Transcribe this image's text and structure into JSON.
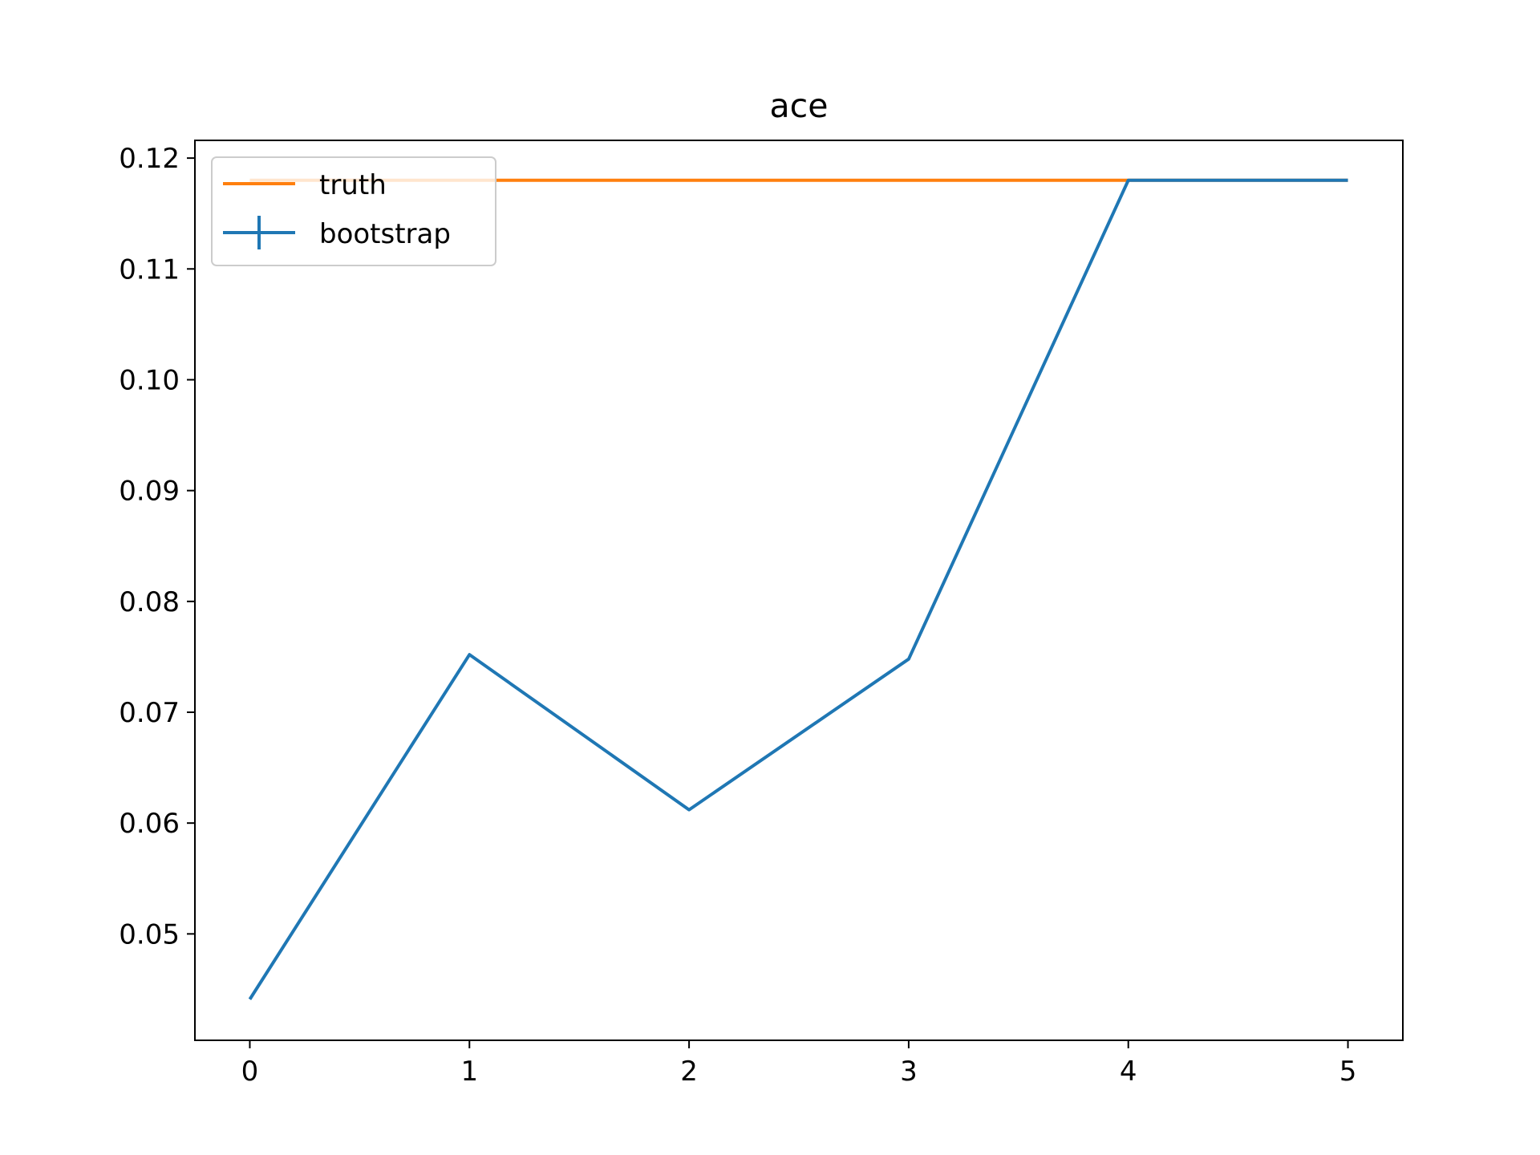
{
  "chart_data": {
    "type": "line",
    "title": "ace",
    "xlabel": "",
    "ylabel": "",
    "x": [
      0,
      1,
      2,
      3,
      4,
      5
    ],
    "xlim": [
      -0.25,
      5.25
    ],
    "ylim": [
      0.0404,
      0.1216
    ],
    "xticks": [
      "0",
      "1",
      "2",
      "3",
      "4",
      "5"
    ],
    "yticks": [
      "0.05",
      "0.06",
      "0.07",
      "0.08",
      "0.09",
      "0.10",
      "0.11",
      "0.12"
    ],
    "ytick_values": [
      0.05,
      0.06,
      0.07,
      0.08,
      0.09,
      0.1,
      0.11,
      0.12
    ],
    "grid": false,
    "legend_position": "upper-left",
    "series": [
      {
        "name": "truth",
        "color": "#ff7f0e",
        "values": [
          0.118,
          0.118,
          0.118,
          0.118,
          0.118,
          0.118
        ]
      },
      {
        "name": "bootstrap",
        "color": "#1f77b4",
        "values": [
          0.0441,
          0.0752,
          0.0612,
          0.0748,
          0.118,
          0.118
        ],
        "error_bars": true
      }
    ]
  }
}
